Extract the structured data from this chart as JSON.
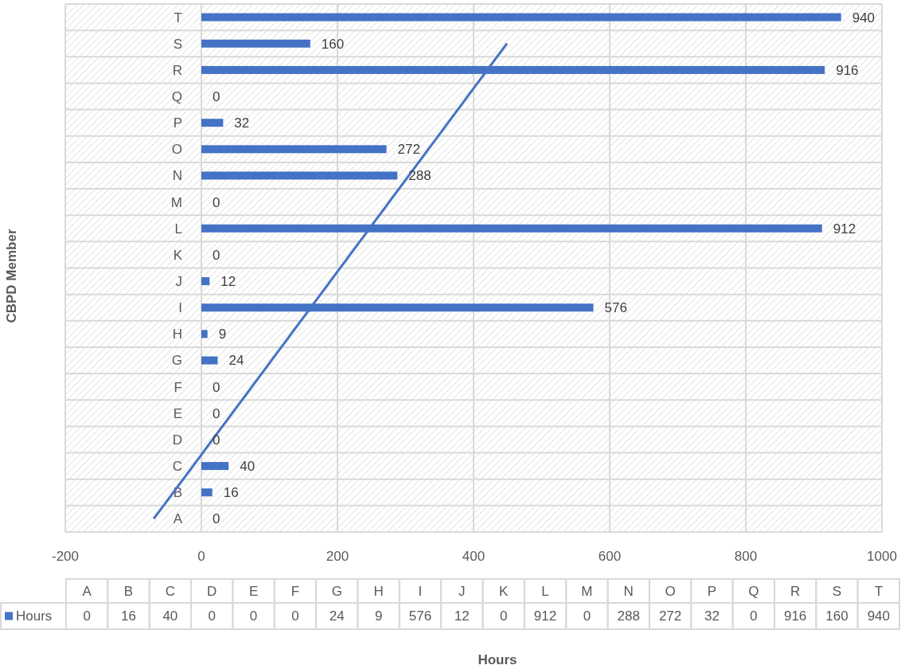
{
  "chart_data": {
    "type": "bar",
    "orientation": "horizontal",
    "ylabel": "CBPD Member",
    "categories": [
      "T",
      "S",
      "R",
      "Q",
      "P",
      "O",
      "N",
      "M",
      "L",
      "K",
      "J",
      "I",
      "H",
      "G",
      "F",
      "E",
      "D",
      "C",
      "B",
      "A"
    ],
    "series": [
      {
        "name": "Hours",
        "color": "#4472c4",
        "values": [
          940,
          160,
          916,
          0,
          32,
          272,
          288,
          0,
          912,
          0,
          12,
          576,
          9,
          24,
          0,
          0,
          0,
          40,
          16,
          0
        ],
        "value_labels": [
          "940",
          "160",
          "916",
          "0",
          "32",
          "272",
          "288",
          "0",
          "912",
          "0",
          "12",
          "576",
          "9",
          "24",
          "0",
          "0",
          "0",
          "40",
          "16",
          "0"
        ]
      },
      {
        "type": "line",
        "color": "#4472c4",
        "x": [
          "A",
          "S"
        ],
        "values": [
          -70,
          449
        ]
      }
    ],
    "annotations": [
      "Hours"
    ],
    "xlim": [
      -200,
      1000
    ],
    "xticks": [
      -200,
      0,
      200,
      400,
      600,
      800,
      1000
    ],
    "grid": true,
    "legend": "bottom"
  }
}
